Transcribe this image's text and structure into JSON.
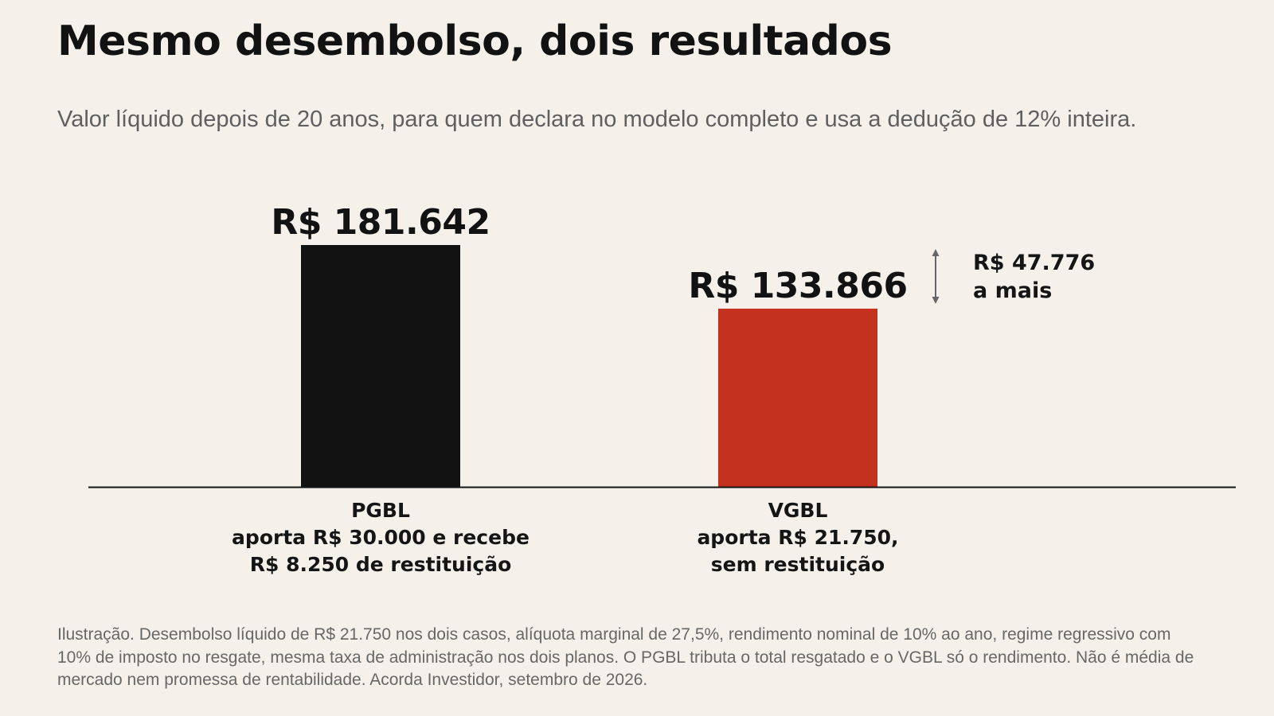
{
  "title": "Mesmo desembolso, dois resultados",
  "subtitle": "Valor líquido depois de 20 anos, para quem declara no modelo completo e usa a dedução de 12% inteira.",
  "chart_data": {
    "type": "bar",
    "categories": [
      "PGBL",
      "VGBL"
    ],
    "category_details": [
      [
        "aporta R$ 30.000 e recebe",
        "R$ 8.250 de restituição"
      ],
      [
        "aporta R$ 21.750,",
        "sem restituição"
      ]
    ],
    "values": [
      181642,
      133866
    ],
    "value_labels": [
      "R$ 181.642",
      "R$ 133.866"
    ],
    "colors": [
      "#121212",
      "#c4321f"
    ],
    "ylim": [
      0,
      181642
    ],
    "grid": false,
    "difference": {
      "value": 47776,
      "lines": [
        "R$ 47.776",
        "a mais"
      ]
    }
  },
  "footnote": "Ilustração. Desembolso líquido de R$ 21.750 nos dois casos, alíquota marginal de 27,5%, rendimento nominal de 10% ao ano, regime regressivo com 10% de imposto no resgate, mesma taxa de administração nos dois planos. O PGBL tributa o total resgatado e o VGBL só o rendimento. Não é média de mercado nem promessa de rentabilidade. Acorda Investidor, setembro de 2026."
}
